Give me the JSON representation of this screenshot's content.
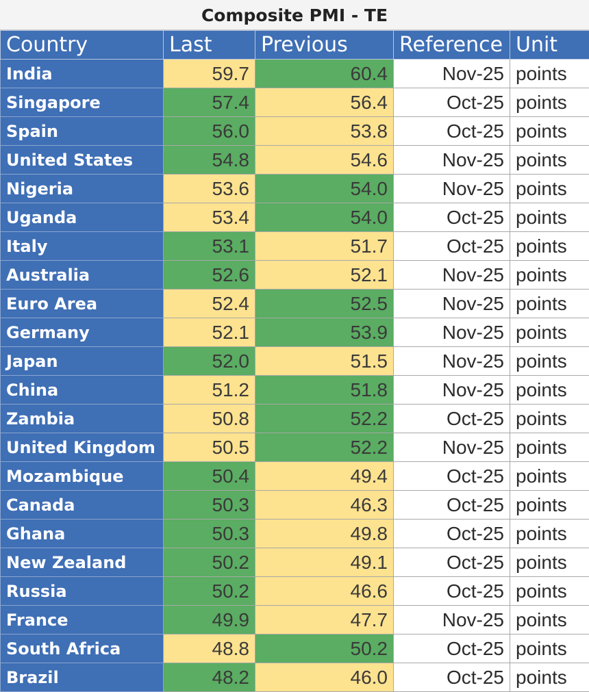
{
  "title": "Composite PMI - TE",
  "colors": {
    "header_blue": "#3f6fb5",
    "higher_green": "#5aad62",
    "lower_yellow": "#fde28f"
  },
  "chart_data": {
    "type": "table",
    "title": "Composite PMI - TE",
    "columns": [
      "Country",
      "Last",
      "Previous",
      "Reference",
      "Unit"
    ],
    "rows": [
      {
        "country": "India",
        "last": "59.7",
        "previous": "60.4",
        "reference": "Nov-25",
        "unit": "points"
      },
      {
        "country": "Singapore",
        "last": "57.4",
        "previous": "56.4",
        "reference": "Oct-25",
        "unit": "points"
      },
      {
        "country": "Spain",
        "last": "56.0",
        "previous": "53.8",
        "reference": "Oct-25",
        "unit": "points"
      },
      {
        "country": "United States",
        "last": "54.8",
        "previous": "54.6",
        "reference": "Nov-25",
        "unit": "points"
      },
      {
        "country": "Nigeria",
        "last": "53.6",
        "previous": "54.0",
        "reference": "Nov-25",
        "unit": "points"
      },
      {
        "country": "Uganda",
        "last": "53.4",
        "previous": "54.0",
        "reference": "Oct-25",
        "unit": "points"
      },
      {
        "country": "Italy",
        "last": "53.1",
        "previous": "51.7",
        "reference": "Oct-25",
        "unit": "points"
      },
      {
        "country": "Australia",
        "last": "52.6",
        "previous": "52.1",
        "reference": "Nov-25",
        "unit": "points"
      },
      {
        "country": "Euro Area",
        "last": "52.4",
        "previous": "52.5",
        "reference": "Nov-25",
        "unit": "points"
      },
      {
        "country": "Germany",
        "last": "52.1",
        "previous": "53.9",
        "reference": "Nov-25",
        "unit": "points"
      },
      {
        "country": "Japan",
        "last": "52.0",
        "previous": "51.5",
        "reference": "Nov-25",
        "unit": "points"
      },
      {
        "country": "China",
        "last": "51.2",
        "previous": "51.8",
        "reference": "Nov-25",
        "unit": "points"
      },
      {
        "country": "Zambia",
        "last": "50.8",
        "previous": "52.2",
        "reference": "Oct-25",
        "unit": "points"
      },
      {
        "country": "United Kingdom",
        "last": "50.5",
        "previous": "52.2",
        "reference": "Nov-25",
        "unit": "points"
      },
      {
        "country": "Mozambique",
        "last": "50.4",
        "previous": "49.4",
        "reference": "Oct-25",
        "unit": "points"
      },
      {
        "country": "Canada",
        "last": "50.3",
        "previous": "46.3",
        "reference": "Oct-25",
        "unit": "points"
      },
      {
        "country": "Ghana",
        "last": "50.3",
        "previous": "49.8",
        "reference": "Oct-25",
        "unit": "points"
      },
      {
        "country": "New Zealand",
        "last": "50.2",
        "previous": "49.1",
        "reference": "Oct-25",
        "unit": "points"
      },
      {
        "country": "Russia",
        "last": "50.2",
        "previous": "46.6",
        "reference": "Oct-25",
        "unit": "points"
      },
      {
        "country": "France",
        "last": "49.9",
        "previous": "47.7",
        "reference": "Nov-25",
        "unit": "points"
      },
      {
        "country": "South Africa",
        "last": "48.8",
        "previous": "50.2",
        "reference": "Oct-25",
        "unit": "points"
      },
      {
        "country": "Brazil",
        "last": "48.2",
        "previous": "46.0",
        "reference": "Oct-25",
        "unit": "points"
      }
    ]
  }
}
